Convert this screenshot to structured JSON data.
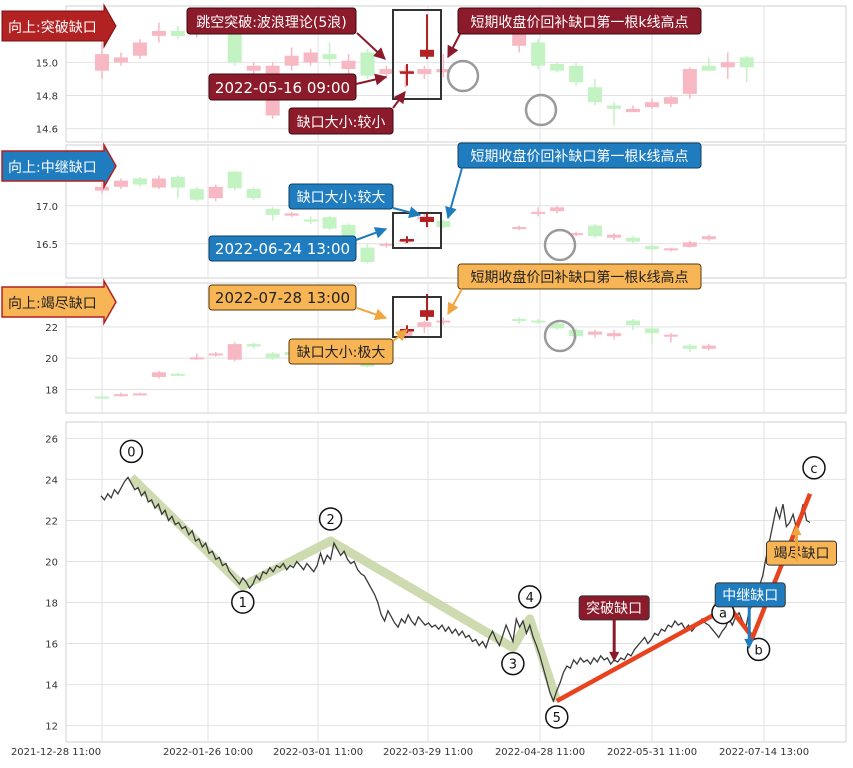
{
  "colors": {
    "up_fill": "#f7b8c4",
    "down_fill": "#c3f2c3",
    "gap_bar": "#b22222",
    "grid": "#e2e2e2",
    "price_line": "#3a3a3a",
    "wave_band": "#c9d7a8",
    "abc_line": "#e8431e",
    "label_dark_red": "#8b1a2a",
    "label_blue": "#1f7dbf",
    "label_orange": "#f7b556"
  },
  "panels": [
    {
      "title": "向上:突破缺口",
      "y_ticks": [
        "15.0",
        "14.8",
        "14.6"
      ],
      "ylim": [
        14.52,
        15.34
      ],
      "date_label": "2022-05-16 09:00",
      "reason_label": "跳空突破:波浪理论(5浪)",
      "gap_size_label": "缺口大小:较小",
      "target_label": "短期收盘价回补缺口第一根k线高点",
      "theme": "dark-red",
      "candles": [
        [
          14.95,
          15.05,
          15.12,
          14.9
        ],
        [
          15.0,
          15.03,
          15.06,
          14.98
        ],
        [
          15.04,
          15.12,
          15.14,
          15.02
        ],
        [
          15.16,
          15.19,
          15.24,
          15.12
        ],
        [
          15.19,
          15.16,
          15.22,
          15.14
        ],
        [
          15.17,
          15.21,
          15.23,
          15.15
        ],
        [
          15.24,
          15.22,
          15.3,
          15.18
        ],
        [
          15.19,
          15.0,
          15.21,
          14.98
        ],
        [
          14.95,
          14.98,
          15.0,
          14.9
        ],
        [
          14.68,
          14.98,
          15.0,
          14.66
        ],
        [
          14.98,
          15.04,
          15.09,
          14.95
        ],
        [
          15.0,
          15.06,
          15.08,
          14.98
        ],
        [
          15.05,
          15.02,
          15.12,
          14.98
        ],
        [
          14.96,
          15.01,
          15.05,
          14.92
        ],
        [
          15.06,
          14.92,
          15.08,
          14.9
        ],
        [
          14.93,
          14.96,
          14.98,
          14.9
        ],
        [
          14.95,
          14.95,
          14.98,
          14.85
        ],
        [
          14.93,
          14.96,
          14.98,
          14.9
        ],
        [
          14.94,
          14.96,
          15.05,
          14.91
        ],
        [
          15.1,
          15.26,
          15.3,
          15.06
        ],
        [
          15.12,
          14.98,
          15.14,
          14.96
        ],
        [
          14.99,
          14.95,
          15.0,
          14.94
        ],
        [
          14.98,
          14.88,
          15.0,
          14.86
        ],
        [
          14.85,
          14.76,
          14.9,
          14.74
        ],
        [
          14.74,
          14.72,
          14.76,
          14.62
        ],
        [
          14.7,
          14.72,
          14.74,
          14.7
        ],
        [
          14.73,
          14.76,
          14.78,
          14.72
        ],
        [
          14.75,
          14.79,
          14.8,
          14.73
        ],
        [
          14.81,
          14.96,
          14.97,
          14.78
        ],
        [
          14.98,
          14.95,
          15.03,
          14.95
        ],
        [
          14.97,
          15.0,
          15.06,
          14.9
        ],
        [
          15.03,
          14.97,
          15.04,
          14.88
        ]
      ],
      "gap_candles": [
        {
          "slot": 19.5,
          "open": 14.94,
          "close": 14.94,
          "high": 14.99,
          "low": 14.86
        },
        {
          "slot": 21,
          "open": 15.04,
          "close": 15.07,
          "high": 15.29,
          "low": 15.02
        }
      ]
    },
    {
      "title": "向上:中继缺口",
      "y_ticks": [
        "17.0",
        "16.5"
      ],
      "ylim": [
        16.05,
        17.8
      ],
      "date_label": "2022-06-24 13:00",
      "reason_label": "",
      "gap_size_label": "缺口大小:较大",
      "target_label": "短期收盘价回补缺口第一根k线高点",
      "theme": "blue",
      "candles": [
        [
          17.2,
          17.25,
          17.3,
          17.16
        ],
        [
          17.25,
          17.33,
          17.36,
          17.22
        ],
        [
          17.36,
          17.28,
          17.38,
          17.25
        ],
        [
          17.24,
          17.36,
          17.4,
          17.22
        ],
        [
          17.38,
          17.24,
          17.4,
          17.1
        ],
        [
          17.22,
          17.08,
          17.25,
          17.06
        ],
        [
          17.1,
          17.25,
          17.28,
          17.06
        ],
        [
          17.45,
          17.23,
          17.46,
          17.2
        ],
        [
          17.22,
          17.1,
          17.24,
          17.08
        ],
        [
          16.96,
          16.88,
          16.98,
          16.8
        ],
        [
          16.87,
          16.9,
          16.92,
          16.85
        ],
        [
          16.82,
          16.8,
          16.86,
          16.76
        ],
        [
          16.85,
          16.7,
          16.87,
          16.68
        ],
        [
          16.75,
          16.52,
          16.77,
          16.48
        ],
        [
          16.45,
          16.26,
          16.5,
          16.24
        ],
        [
          16.48,
          16.5,
          16.52,
          16.45
        ],
        [
          16.54,
          16.55,
          16.56,
          16.5
        ],
        [
          16.82,
          16.86,
          16.9,
          16.78
        ],
        [
          16.8,
          16.72,
          16.82,
          16.7
        ],
        [
          16.7,
          16.72,
          16.74,
          16.68
        ],
        [
          16.9,
          16.92,
          16.98,
          16.86
        ],
        [
          16.93,
          16.98,
          17.0,
          16.9
        ],
        [
          16.62,
          16.64,
          16.66,
          16.6
        ],
        [
          16.74,
          16.6,
          16.76,
          16.58
        ],
        [
          16.58,
          16.62,
          16.64,
          16.55
        ],
        [
          16.58,
          16.53,
          16.6,
          16.5
        ],
        [
          16.47,
          16.43,
          16.49,
          16.41
        ],
        [
          16.42,
          16.44,
          16.45,
          16.4
        ],
        [
          16.46,
          16.52,
          16.54,
          16.45
        ],
        [
          16.56,
          16.6,
          16.62,
          16.54
        ]
      ],
      "gap_candles": [
        {
          "slot": 19.5,
          "open": 16.55,
          "close": 16.55,
          "high": 16.6,
          "low": 16.51
        },
        {
          "slot": 21,
          "open": 16.8,
          "close": 16.84,
          "high": 16.92,
          "low": 16.72
        }
      ]
    },
    {
      "title": "向上:竭尽缺口",
      "y_ticks": [
        "22",
        "20",
        "18"
      ],
      "ylim": [
        16.5,
        24.8
      ],
      "date_label": "2022-07-28 13:00",
      "reason_label": "",
      "gap_size_label": "缺口大小:极大",
      "target_label": "短期收盘价回补缺口第一根k线高点",
      "theme": "orange",
      "candles": [
        [
          17.55,
          17.45,
          17.6,
          17.4
        ],
        [
          17.6,
          17.7,
          17.8,
          17.55
        ],
        [
          17.7,
          17.75,
          17.8,
          17.65
        ],
        [
          18.8,
          19.1,
          19.2,
          18.7
        ],
        [
          19.0,
          18.95,
          19.05,
          18.85
        ],
        [
          20.0,
          20.05,
          20.3,
          19.9
        ],
        [
          20.2,
          20.3,
          20.4,
          20.1
        ],
        [
          19.9,
          20.9,
          21.0,
          19.8
        ],
        [
          20.9,
          20.75,
          21.0,
          20.6
        ],
        [
          20.3,
          20.0,
          20.4,
          19.9
        ],
        [
          20.4,
          20.2,
          20.5,
          20.0
        ],
        [
          20.2,
          20.6,
          20.8,
          20.0
        ],
        [
          20.3,
          20.35,
          20.5,
          20.1
        ],
        [
          20.4,
          20.3,
          20.5,
          19.8
        ],
        [
          19.6,
          19.5,
          19.8,
          19.4
        ],
        [
          20.0,
          20.3,
          20.4,
          19.9
        ],
        [
          21.3,
          21.8,
          21.9,
          21.2
        ],
        [
          22.0,
          22.3,
          22.4,
          21.6
        ],
        [
          22.3,
          22.4,
          22.6,
          22.1
        ],
        [
          22.5,
          22.4,
          22.6,
          22.2
        ],
        [
          22.4,
          22.3,
          22.5,
          22.2
        ],
        [
          22.2,
          21.9,
          22.3,
          21.8
        ],
        [
          21.8,
          21.4,
          21.9,
          21.2
        ],
        [
          21.5,
          21.7,
          21.8,
          21.3
        ],
        [
          21.4,
          21.6,
          21.8,
          21.2
        ],
        [
          22.4,
          22.1,
          22.5,
          21.8
        ],
        [
          21.9,
          21.6,
          22.0,
          20.9
        ],
        [
          21.4,
          21.5,
          21.6,
          21.0
        ],
        [
          20.8,
          20.6,
          20.9,
          20.4
        ],
        [
          20.6,
          20.8,
          20.9,
          20.5
        ]
      ],
      "gap_candles": [
        {
          "slot": 19.5,
          "open": 21.8,
          "close": 21.8,
          "high": 22.1,
          "low": 21.6
        },
        {
          "slot": 21,
          "open": 22.7,
          "close": 23.0,
          "high": 24.1,
          "low": 22.4
        }
      ]
    }
  ],
  "chart_data": {
    "type": "line",
    "ylim": [
      11.2,
      26.8
    ],
    "y_ticks": [
      26,
      24,
      22,
      20,
      18,
      16,
      14,
      12
    ],
    "x_tick_labels": [
      "2021-12-28 11:00",
      "2022-01-26 10:00",
      "2022-03-01 11:00",
      "2022-03-29 11:00",
      "2022-04-28 11:00",
      "2022-05-31 11:00",
      "2022-07-14 13:00"
    ],
    "grid": true,
    "price_series": [
      23.2,
      23.0,
      23.3,
      23.1,
      23.5,
      23.3,
      23.6,
      23.9,
      24.1,
      23.8,
      23.5,
      23.6,
      23.2,
      23.4,
      22.9,
      23.0,
      22.6,
      22.8,
      22.3,
      22.5,
      22.0,
      22.2,
      21.8,
      21.9,
      21.6,
      21.7,
      21.3,
      21.5,
      21.0,
      21.1,
      20.7,
      20.9,
      20.4,
      20.5,
      20.1,
      20.2,
      19.8,
      19.9,
      19.5,
      19.3,
      19.1,
      18.9,
      19.2,
      19.0,
      18.7,
      18.9,
      19.3,
      19.1,
      19.5,
      19.4,
      19.7,
      19.5,
      19.8,
      19.7,
      19.9,
      19.6,
      19.8,
      19.7,
      20.0,
      19.8,
      19.6,
      19.9,
      19.7,
      19.5,
      19.8,
      20.4,
      19.9,
      20.3,
      20.1,
      20.9,
      20.6,
      20.3,
      20.5,
      20.1,
      19.9,
      20.0,
      19.6,
      19.4,
      19.3,
      19.0,
      18.7,
      18.4,
      18.0,
      17.4,
      17.1,
      17.6,
      17.3,
      17.0,
      16.8,
      17.2,
      17.0,
      17.4,
      17.1,
      16.9,
      17.3,
      17.1,
      16.9,
      17.0,
      16.8,
      16.9,
      16.7,
      16.9,
      16.6,
      16.8,
      16.5,
      16.7,
      16.4,
      16.6,
      16.3,
      16.4,
      16.1,
      16.2,
      15.9,
      16.1,
      15.8,
      16.3,
      16.6,
      16.2,
      15.9,
      16.4,
      16.9,
      16.5,
      16.1,
      17.2,
      16.8,
      17.1,
      16.5,
      16.9,
      16.3,
      15.9,
      15.4,
      14.8,
      14.2,
      13.6,
      13.2,
      13.7,
      14.1,
      14.6,
      14.9,
      14.8,
      15.2,
      15.0,
      15.3,
      15.1,
      15.2,
      15.0,
      15.3,
      15.1,
      15.4,
      15.2,
      15.3,
      15.0,
      15.2,
      15.1,
      15.3,
      15.2,
      15.5,
      15.4,
      15.7,
      15.9,
      16.1,
      16.3,
      16.0,
      16.2,
      16.5,
      16.4,
      16.7,
      16.6,
      16.9,
      16.8,
      17.1,
      16.9,
      17.0,
      16.7,
      16.9,
      16.6,
      16.8,
      17.0,
      17.2,
      17.0,
      16.9,
      16.7,
      16.5,
      16.3,
      16.6,
      16.8,
      17.2,
      16.9,
      17.3,
      17.5,
      17.1,
      16.8,
      17.6,
      17.9,
      18.3,
      18.8,
      19.3,
      20.2,
      21.0,
      21.8,
      22.6,
      22.1,
      22.8,
      21.7,
      21.9,
      22.3,
      21.6,
      22.2,
      22.8,
      22.0,
      21.9
    ],
    "wave_labels": [
      "0",
      "1",
      "2",
      "3",
      "4",
      "5"
    ],
    "wave_points": [
      [
        9,
        24.1
      ],
      [
        42,
        18.8
      ],
      [
        68,
        21.0
      ],
      [
        122,
        15.8
      ],
      [
        127,
        17.2
      ],
      [
        135,
        13.2
      ]
    ],
    "abc_labels": [
      "a",
      "b",
      "c"
    ],
    "abc_points": [
      [
        135,
        13.2
      ],
      [
        186,
        17.8
      ],
      [
        193,
        16.3
      ],
      [
        210,
        23.3
      ]
    ],
    "gap_markers": [
      {
        "label": "突破缺口",
        "x": 152,
        "y": 15.3,
        "theme": "dark-red"
      },
      {
        "label": "中继缺口",
        "x": 192,
        "y": 17.2,
        "theme": "blue"
      },
      {
        "label": "竭尽缺口",
        "x": 206,
        "y": 20.6,
        "theme": "orange"
      }
    ]
  }
}
